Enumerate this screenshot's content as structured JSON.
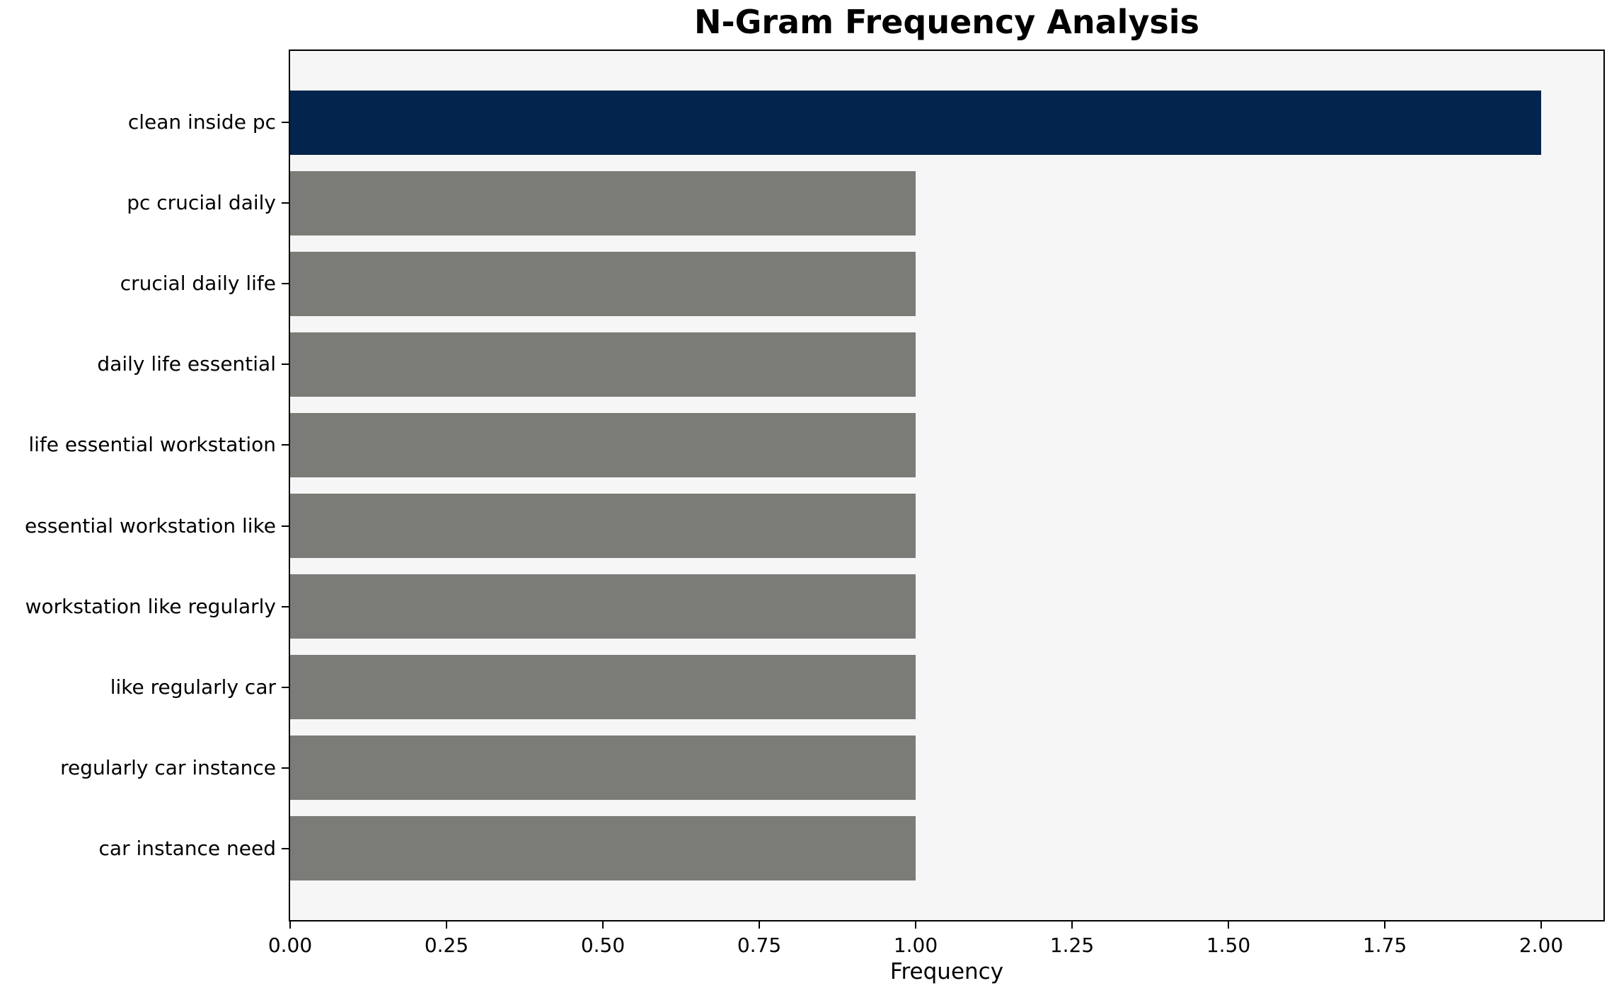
{
  "chart_data": {
    "type": "bar",
    "orientation": "horizontal",
    "title": "N-Gram Frequency Analysis",
    "xlabel": "Frequency",
    "ylabel": "",
    "categories": [
      "clean inside pc",
      "pc crucial daily",
      "crucial daily life",
      "daily life essential",
      "life essential workstation",
      "essential workstation like",
      "workstation like regularly",
      "like regularly car",
      "regularly car instance",
      "car instance need"
    ],
    "values": [
      2,
      1,
      1,
      1,
      1,
      1,
      1,
      1,
      1,
      1
    ],
    "bar_colors": [
      "#02244d",
      "#7b7b78",
      "#7b7b78",
      "#7b7b78",
      "#7b7b78",
      "#7b7b78",
      "#7b7b78",
      "#7b7b78",
      "#7b7b78",
      "#7b7b78"
    ],
    "xlim": [
      0,
      2.1
    ],
    "xticks": [
      0,
      0.25,
      0.5,
      0.75,
      1.0,
      1.25,
      1.5,
      1.75,
      2.0
    ],
    "xtick_labels": [
      "0.00",
      "0.25",
      "0.50",
      "0.75",
      "1.00",
      "1.25",
      "1.50",
      "1.75",
      "2.00"
    ],
    "grid": false,
    "legend": null,
    "colors": {
      "highlight_bar": "#02244d",
      "default_bar": "#7b7b78",
      "plot_background": "#f6f6f6",
      "figure_background": "#ffffff",
      "text": "#000000",
      "spine": "#000000"
    }
  }
}
